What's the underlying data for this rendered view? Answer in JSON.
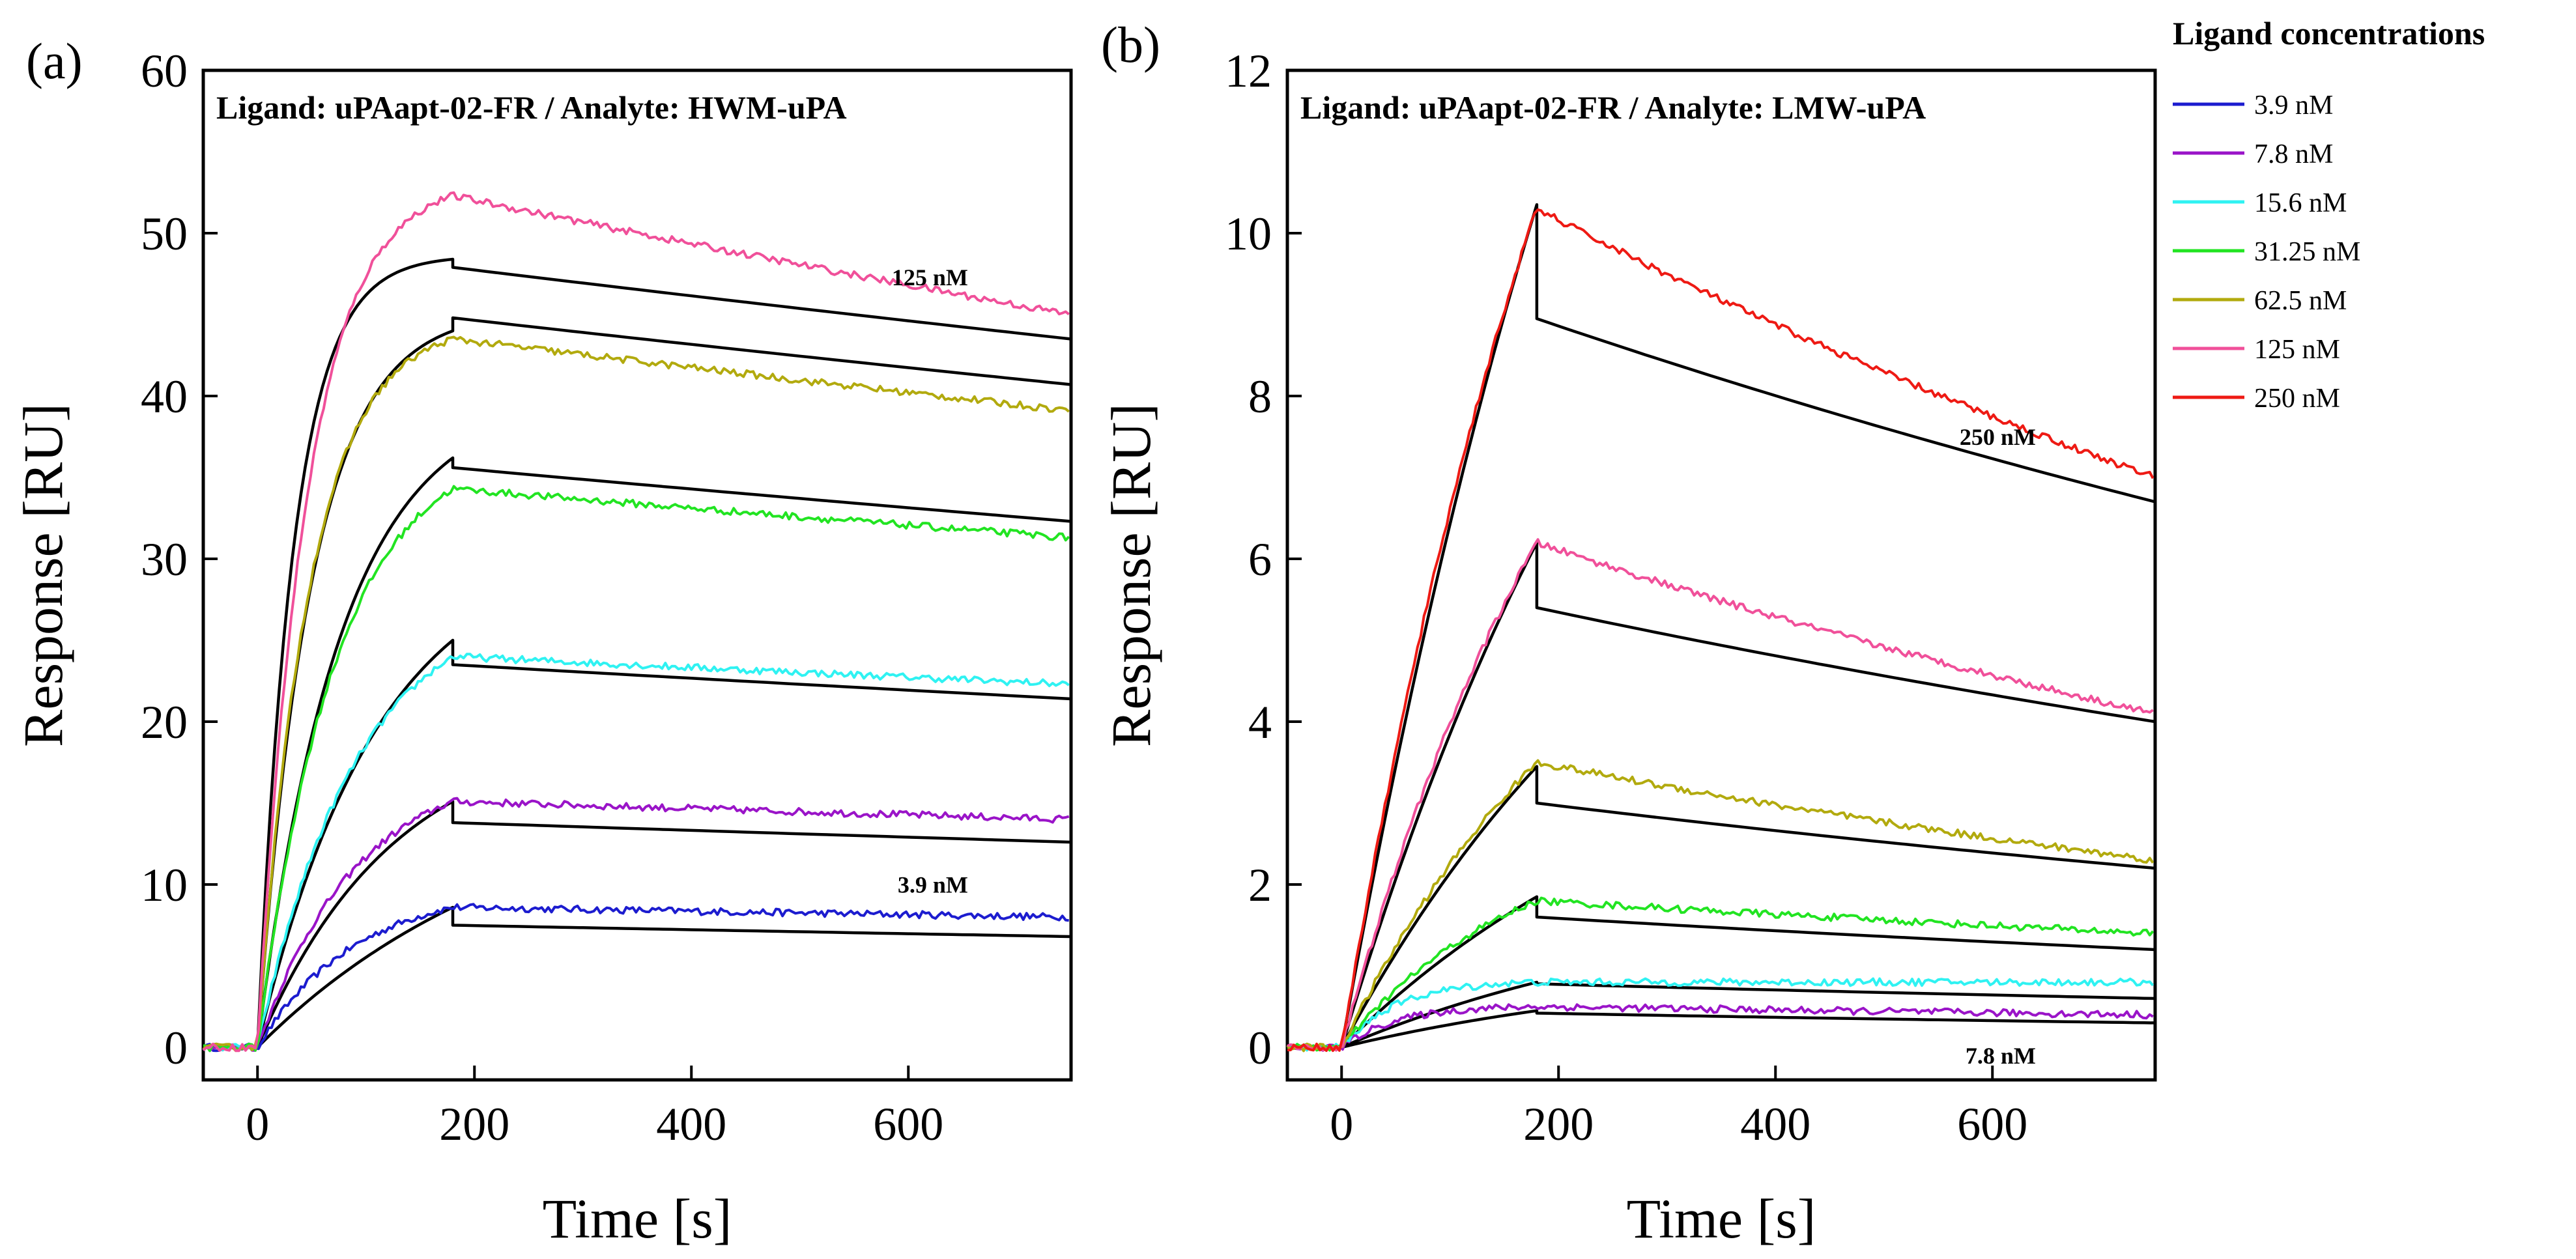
{
  "figure": {
    "legend": {
      "title": "Ligand concentrations",
      "entries": [
        {
          "label": "3.9 nM",
          "color": "#1c1ccf"
        },
        {
          "label": "7.8 nM",
          "color": "#9a14c8"
        },
        {
          "label": "15.6 nM",
          "color": "#2ff2f2"
        },
        {
          "label": "31.25 nM",
          "color": "#22e422"
        },
        {
          "label": "62.5 nM",
          "color": "#b2aa0e"
        },
        {
          "label": "125 nM",
          "color": "#f0509a"
        },
        {
          "label": "250 nM",
          "color": "#ee1a14"
        }
      ]
    },
    "fit_color": "#000000"
  },
  "chart_data": [
    {
      "type": "line",
      "panel_label": "(a)",
      "title": "Ligand: uPAapt-02-FR / Analyte: HWM-uPA",
      "xlabel": "Time [s]",
      "ylabel": "Response [RU]",
      "xlim": [
        -50,
        750
      ],
      "ylim": [
        -2,
        60
      ],
      "xticks": [
        "0",
        "200",
        "400",
        "600"
      ],
      "xtick_values": [
        0,
        200,
        400,
        600
      ],
      "yticks": [
        "0",
        "10",
        "20",
        "30",
        "40",
        "50",
        "60"
      ],
      "ytick_values": [
        0,
        10,
        20,
        30,
        40,
        50,
        60
      ],
      "injection_end": 180,
      "annotations": [
        {
          "text": "125 nM",
          "x": 655,
          "y": 46.8
        },
        {
          "text": "3.9 nM",
          "x": 655,
          "y": 9.5
        }
      ],
      "series": [
        {
          "name": "3.9 nM",
          "color": "#1c1ccf",
          "measured": {
            "peak": 8.6,
            "end": 8.0,
            "k": 0.011
          },
          "fit": {
            "peak": 8.6,
            "dissoc_start": 7.5,
            "end": 6.8,
            "k": 0.004
          }
        },
        {
          "name": "7.8 nM",
          "color": "#9a14c8",
          "measured": {
            "peak": 15.1,
            "end": 14.0,
            "k": 0.011
          },
          "fit": {
            "peak": 15.1,
            "dissoc_start": 13.8,
            "end": 12.6,
            "k": 0.008
          }
        },
        {
          "name": "15.6 nM",
          "color": "#2ff2f2",
          "measured": {
            "peak": 24.0,
            "end": 22.3,
            "k": 0.011
          },
          "fit": {
            "peak": 25.0,
            "dissoc_start": 23.5,
            "end": 21.4,
            "k": 0.009
          }
        },
        {
          "name": "31.25 nM",
          "color": "#22e422",
          "measured": {
            "peak": 34.3,
            "end": 31.3,
            "k": 0.014
          },
          "fit": {
            "peak": 36.2,
            "dissoc_start": 35.6,
            "end": 32.3,
            "k": 0.013
          }
        },
        {
          "name": "62.5 nM",
          "color": "#b2aa0e",
          "measured": {
            "peak": 43.5,
            "end": 39.1,
            "k": 0.021
          },
          "fit": {
            "peak": 44.0,
            "dissoc_start": 44.8,
            "end": 40.7,
            "k": 0.02
          }
        },
        {
          "name": "125 nM",
          "color": "#f0509a",
          "measured": {
            "peak": 52.3,
            "end": 45.0,
            "k": 0.022
          },
          "fit": {
            "peak": 48.4,
            "dissoc_start": 47.9,
            "end": 43.5,
            "k": 0.03
          }
        }
      ]
    },
    {
      "type": "line",
      "panel_label": "(b)",
      "title": "Ligand: uPAapt-02-FR / Analyte: LMW-uPA",
      "xlabel": "Time [s]",
      "ylabel": "Response [RU]",
      "xlim": [
        -50,
        750
      ],
      "ylim": [
        -0.4,
        12
      ],
      "xticks": [
        "0",
        "200",
        "400",
        "600"
      ],
      "xtick_values": [
        0,
        200,
        400,
        600
      ],
      "yticks": [
        "0",
        "2",
        "4",
        "6",
        "8",
        "10",
        "12"
      ],
      "ytick_values": [
        0,
        2,
        4,
        6,
        8,
        10,
        12
      ],
      "injection_end": 180,
      "annotations": [
        {
          "text": "250 nM",
          "x": 640,
          "y": 7.4
        },
        {
          "text": "7.8 nM",
          "x": 640,
          "y": -0.2
        }
      ],
      "series": [
        {
          "name": "7.8 nM",
          "color": "#9a14c8",
          "measured": {
            "peak": 0.5,
            "end": 0.4,
            "k": 0.02
          },
          "fit": {
            "peak": 0.45,
            "dissoc_start": 0.42,
            "end": 0.3,
            "k": 0.003
          }
        },
        {
          "name": "15.6 nM",
          "color": "#2ff2f2",
          "measured": {
            "peak": 0.8,
            "end": 0.8,
            "k": 0.02
          },
          "fit": {
            "peak": 0.8,
            "dissoc_start": 0.78,
            "end": 0.6,
            "k": 0.003
          }
        },
        {
          "name": "31.25 nM",
          "color": "#22e422",
          "measured": {
            "peak": 1.8,
            "end": 1.4,
            "k": 0.006
          },
          "fit": {
            "peak": 1.85,
            "dissoc_start": 1.6,
            "end": 1.2,
            "k": 0.003
          }
        },
        {
          "name": "62.5 nM",
          "color": "#b2aa0e",
          "measured": {
            "peak": 3.5,
            "end": 2.3,
            "k": 0.004
          },
          "fit": {
            "peak": 3.45,
            "dissoc_start": 3.0,
            "end": 2.2,
            "k": 0.003
          }
        },
        {
          "name": "125 nM",
          "color": "#f0509a",
          "measured": {
            "peak": 6.2,
            "end": 4.1,
            "k": 0.004
          },
          "fit": {
            "peak": 6.2,
            "dissoc_start": 5.4,
            "end": 4.0,
            "k": 0.003
          }
        },
        {
          "name": "250 nM",
          "color": "#ee1a14",
          "measured": {
            "peak": 10.3,
            "end": 7.0,
            "k": 0.004
          },
          "fit": {
            "peak": 10.35,
            "dissoc_start": 8.95,
            "end": 6.7,
            "k": 0.003
          }
        }
      ]
    }
  ]
}
